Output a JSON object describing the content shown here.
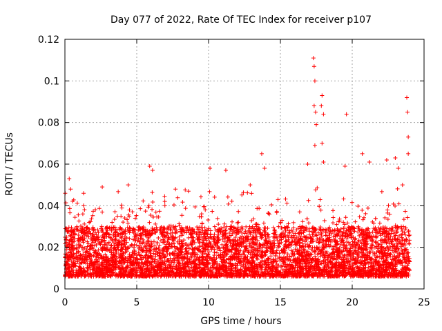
{
  "chart_data": {
    "type": "scatter",
    "title": "Day 077 of 2022, Rate Of TEC Index for receiver p107",
    "xlabel": "GPS time / hours",
    "ylabel": "ROTI / TECUs",
    "xlim": [
      0,
      25
    ],
    "ylim": [
      0,
      0.12
    ],
    "x_ticks": [
      "0",
      "5",
      "10",
      "15",
      "20",
      "25"
    ],
    "x_tick_values": [
      0,
      5,
      10,
      15,
      20,
      25
    ],
    "y_ticks": [
      "0",
      "0.02",
      "0.04",
      "0.06",
      "0.08",
      "0.1",
      "0.12"
    ],
    "y_tick_values": [
      0,
      0.02,
      0.04,
      0.06,
      0.08,
      0.1,
      0.12
    ],
    "grid": true,
    "marker": "plus",
    "series_color": "#ff0000",
    "points": [
      [
        0.3,
        0.053
      ],
      [
        0.4,
        0.048
      ],
      [
        1.3,
        0.046
      ],
      [
        2.6,
        0.049
      ],
      [
        4.4,
        0.05
      ],
      [
        5.9,
        0.059
      ],
      [
        6.1,
        0.057
      ],
      [
        7.7,
        0.048
      ],
      [
        8.6,
        0.047
      ],
      [
        10.1,
        0.058
      ],
      [
        11.2,
        0.057
      ],
      [
        12.9,
        0.05
      ],
      [
        13.7,
        0.065
      ],
      [
        13.9,
        0.058
      ],
      [
        16.9,
        0.06
      ],
      [
        17.3,
        0.111
      ],
      [
        17.35,
        0.107
      ],
      [
        17.4,
        0.1
      ],
      [
        17.35,
        0.088
      ],
      [
        17.45,
        0.085
      ],
      [
        17.5,
        0.079
      ],
      [
        17.4,
        0.069
      ],
      [
        17.9,
        0.093
      ],
      [
        17.85,
        0.088
      ],
      [
        18.0,
        0.084
      ],
      [
        17.9,
        0.07
      ],
      [
        18.0,
        0.061
      ],
      [
        19.6,
        0.084
      ],
      [
        19.5,
        0.059
      ],
      [
        20.7,
        0.065
      ],
      [
        21.2,
        0.061
      ],
      [
        22.4,
        0.062
      ],
      [
        23.0,
        0.063
      ],
      [
        23.2,
        0.058
      ],
      [
        23.8,
        0.092
      ],
      [
        23.85,
        0.085
      ],
      [
        23.9,
        0.073
      ],
      [
        23.9,
        0.065
      ],
      [
        23.5,
        0.05
      ]
    ],
    "band": {
      "description_hours": [
        0,
        24
      ],
      "baseline_range": [
        0.006,
        0.03
      ],
      "generated_count": 5200
    }
  }
}
